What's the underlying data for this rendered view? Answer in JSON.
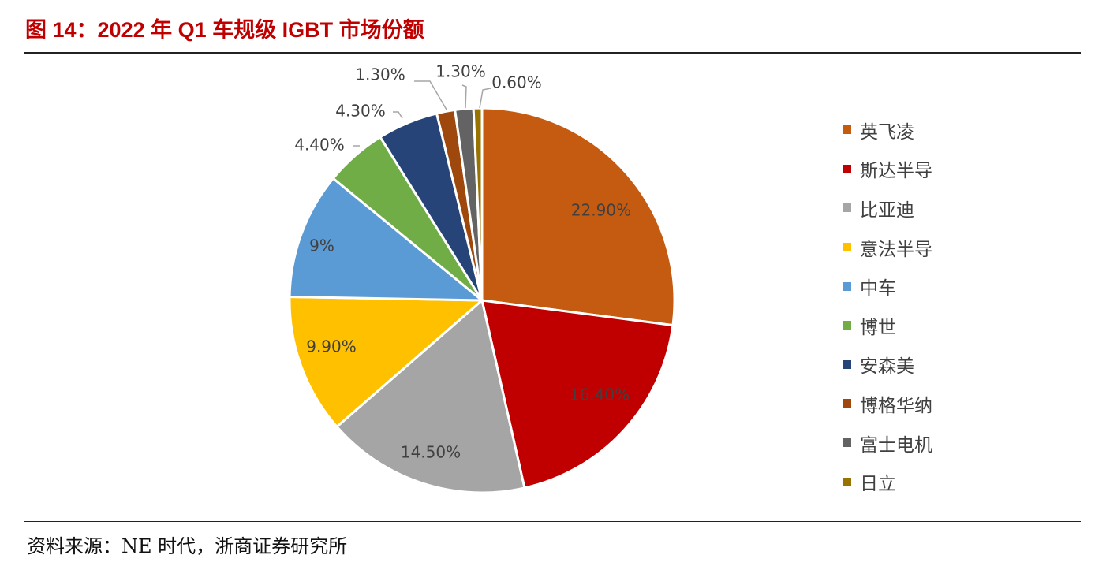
{
  "figure": {
    "title": "图 14：2022 年 Q1 车规级 IGBT 市场份额",
    "source": "资料来源：NE 时代，浙商证券研究所"
  },
  "chart_data": {
    "type": "pie",
    "title": "",
    "legend_position": "right",
    "slices": [
      {
        "name": "英飞凌",
        "value": 22.9,
        "label": "22.90%",
        "color": "#C55A11"
      },
      {
        "name": "斯达半导",
        "value": 16.4,
        "label": "16.40%",
        "color": "#C00000"
      },
      {
        "name": "比亚迪",
        "value": 14.5,
        "label": "14.50%",
        "color": "#A5A5A5"
      },
      {
        "name": "意法半导",
        "value": 9.9,
        "label": "9.90%",
        "color": "#FFC000"
      },
      {
        "name": "中车",
        "value": 9.0,
        "label": "9%",
        "color": "#5B9BD5"
      },
      {
        "name": "博世",
        "value": 4.4,
        "label": "4.40%",
        "color": "#70AD47"
      },
      {
        "name": "安森美",
        "value": 4.3,
        "label": "4.30%",
        "color": "#264478"
      },
      {
        "name": "博格华纳",
        "value": 1.3,
        "label": "1.30%",
        "color": "#9E480E"
      },
      {
        "name": "富士电机",
        "value": 1.3,
        "label": "1.30%",
        "color": "#636363"
      },
      {
        "name": "日立",
        "value": 0.6,
        "label": "0.60%",
        "color": "#997300"
      }
    ]
  }
}
